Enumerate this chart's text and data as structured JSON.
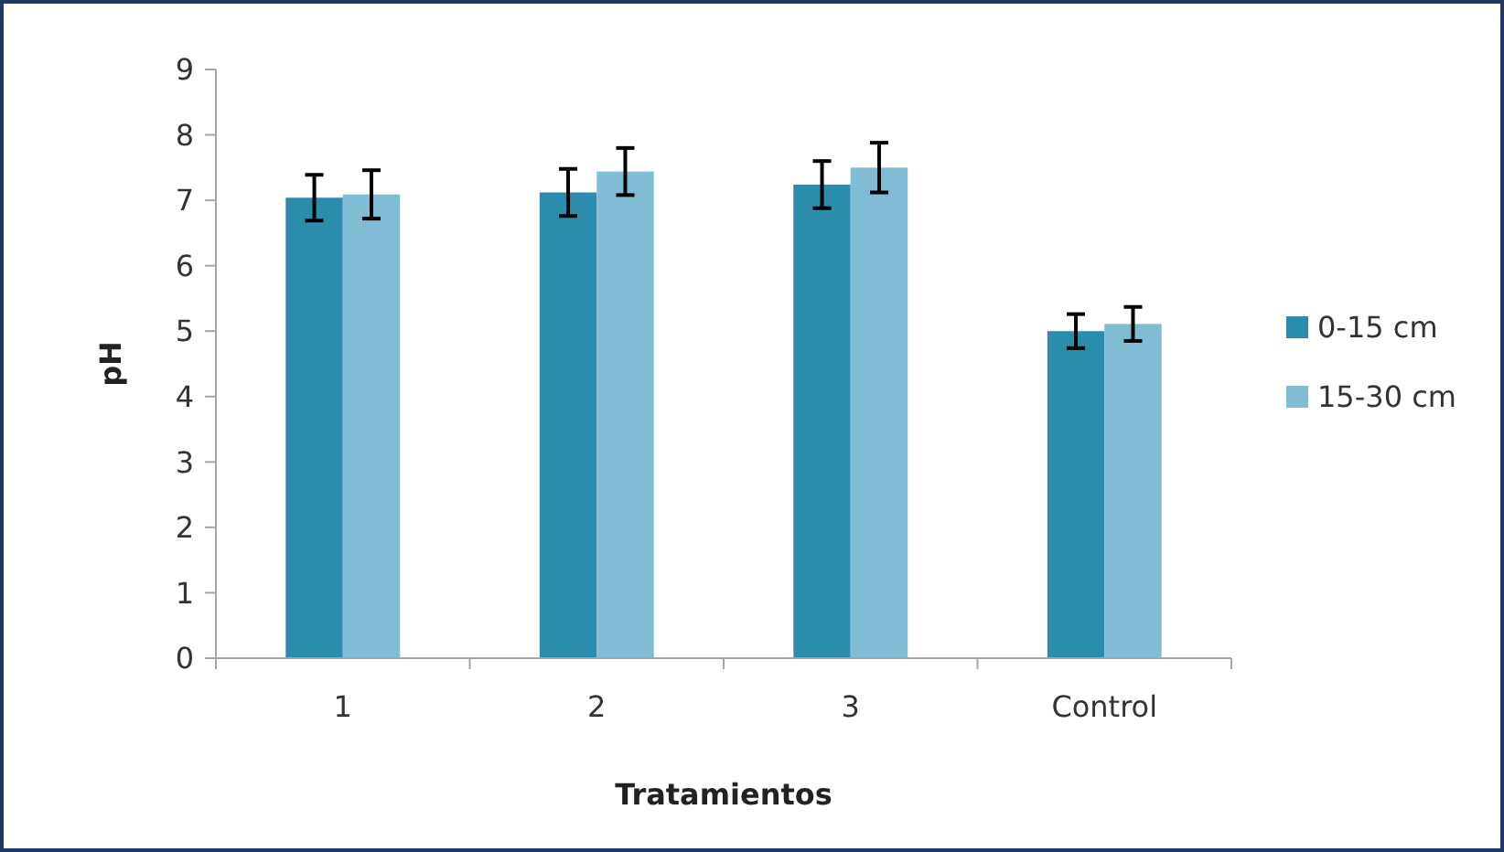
{
  "chart_data": {
    "type": "bar",
    "xlabel": "Tratamientos",
    "ylabel": "pH",
    "categories": [
      "1",
      "2",
      "3",
      "Control"
    ],
    "series": [
      {
        "name": "0-15 cm",
        "color": "#2b8cab",
        "values": [
          7.04,
          7.12,
          7.24,
          5.0
        ],
        "errors": [
          0.35,
          0.36,
          0.36,
          0.26
        ]
      },
      {
        "name": "15-30 cm",
        "color": "#80bcd3",
        "values": [
          7.09,
          7.44,
          7.5,
          5.11
        ],
        "errors": [
          0.37,
          0.36,
          0.38,
          0.26
        ]
      }
    ],
    "ylim": [
      0,
      9
    ],
    "yticks": [
      0,
      1,
      2,
      3,
      4,
      5,
      6,
      7,
      8,
      9
    ],
    "grid": false,
    "legend": "right"
  }
}
